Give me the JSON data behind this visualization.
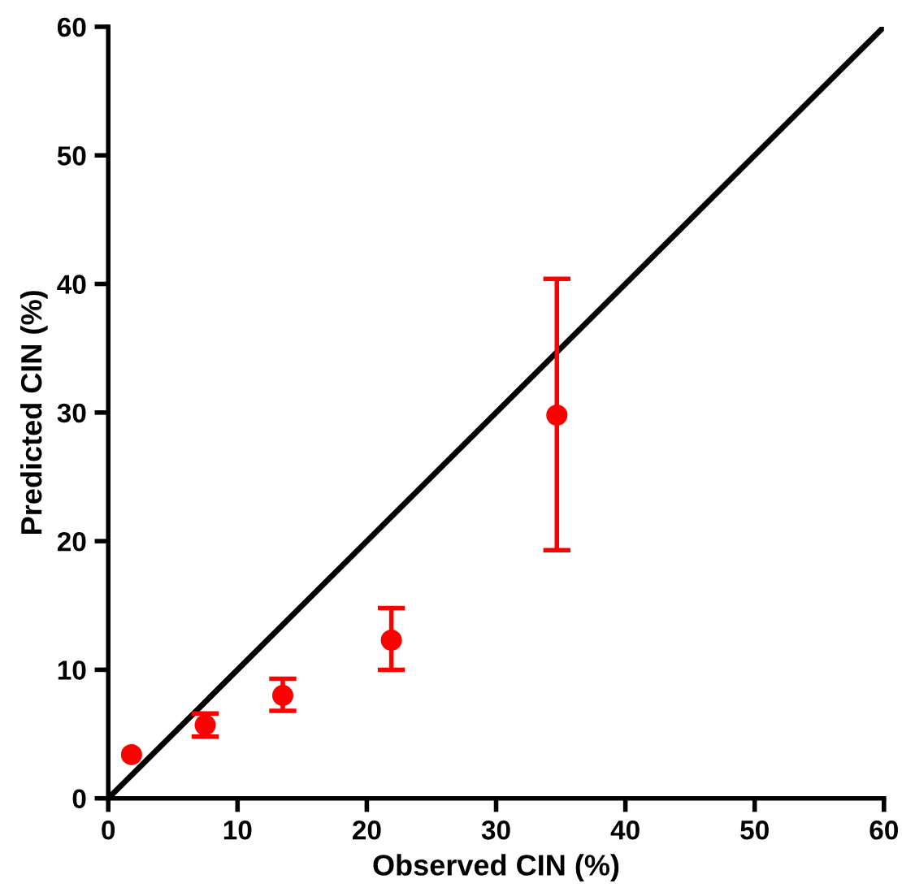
{
  "chart_data": {
    "type": "scatter",
    "xlabel": "Observed CIN (%)",
    "ylabel": "Predicted CIN (%)",
    "xlim": [
      0,
      60
    ],
    "ylim": [
      0,
      60
    ],
    "xticks": [
      0,
      10,
      20,
      30,
      40,
      50,
      60
    ],
    "yticks": [
      0,
      10,
      20,
      30,
      40,
      50,
      60
    ],
    "grid": false,
    "marker": "circle",
    "series": [
      {
        "type": "line",
        "color": "#000000",
        "x": [
          0,
          60
        ],
        "values": [
          0,
          60
        ],
        "marker": "none",
        "line_style": "solid"
      },
      {
        "color": "#ff0000",
        "x": [
          1.8,
          7.5,
          13.5,
          21.9,
          34.7
        ],
        "values": [
          3.4,
          5.7,
          8.0,
          12.3,
          29.8
        ],
        "errors": [
          null,
          [
            4.8,
            6.6
          ],
          [
            6.8,
            9.3
          ],
          [
            10.0,
            14.8
          ],
          [
            19.3,
            40.4
          ]
        ]
      }
    ]
  }
}
